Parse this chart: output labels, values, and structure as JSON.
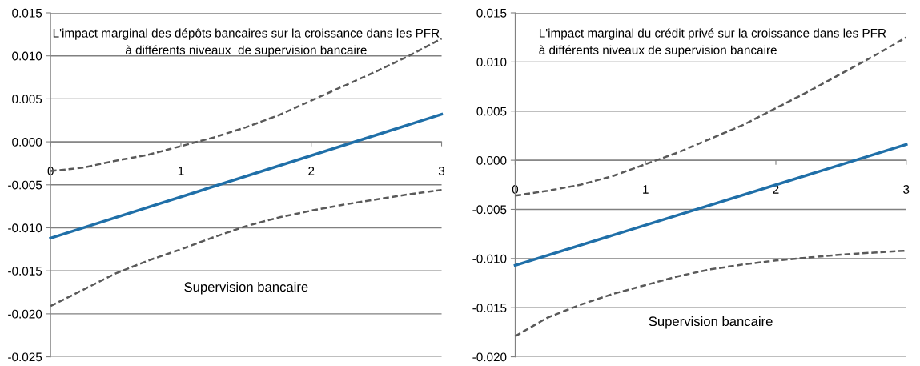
{
  "chart_data": [
    {
      "type": "line",
      "title": "L'impact marginal des dépôts bancaires sur la croissance dans les PFR\nà différents niveaux  de supervision bancaire",
      "xlabel": "Supervision bancaire",
      "xlim": [
        0,
        3
      ],
      "xticks": [
        0,
        1,
        2,
        3
      ],
      "ylim": [
        -0.025,
        0.015
      ],
      "yticks": [
        {
          "value": -0.025,
          "label": "-0.025"
        },
        {
          "value": -0.02,
          "label": "-0.020"
        },
        {
          "value": -0.015,
          "label": "-0.015"
        },
        {
          "value": -0.01,
          "label": "-0.010"
        },
        {
          "value": -0.005,
          "label": "-0.005"
        },
        {
          "value": 0,
          "label": "0.000"
        },
        {
          "value": 0.005,
          "label": "0.005"
        },
        {
          "value": 0.01,
          "label": "0.010"
        },
        {
          "value": 0.015,
          "label": "0.015"
        }
      ],
      "grid": "y",
      "legend": false,
      "marker": "none",
      "series": [
        {
          "color": "#595959",
          "line_style": "dashed",
          "x": [
            0,
            0.25,
            0.5,
            0.75,
            1,
            1.25,
            1.5,
            1.75,
            2,
            2.25,
            2.5,
            2.75,
            3
          ],
          "values": [
            -0.0034,
            -0.003,
            -0.0022,
            -0.0015,
            -0.0005,
            0.0005,
            0.0017,
            0.0031,
            0.0048,
            0.0065,
            0.0082,
            0.01,
            0.012
          ]
        },
        {
          "color": "#1f6fa8",
          "line_style": "solid",
          "x": [
            0,
            3
          ],
          "values": [
            -0.0112,
            0.0032
          ]
        },
        {
          "color": "#595959",
          "line_style": "dashed",
          "x": [
            0,
            0.25,
            0.5,
            0.75,
            1,
            1.25,
            1.5,
            1.75,
            2,
            2.25,
            2.5,
            2.75,
            3
          ],
          "values": [
            -0.0191,
            -0.0172,
            -0.0153,
            -0.0138,
            -0.0125,
            -0.0111,
            -0.0098,
            -0.0088,
            -0.008,
            -0.0073,
            -0.0067,
            -0.0061,
            -0.0056
          ]
        }
      ]
    },
    {
      "type": "line",
      "title": "L'impact marginal du crédit privé sur la croissance dans les PFR\nà différents niveaux de supervision bancaire",
      "xlabel": "Supervision bancaire",
      "xlim": [
        0,
        3
      ],
      "xticks": [
        0,
        1,
        2,
        3
      ],
      "ylim": [
        -0.02,
        0.015
      ],
      "yticks": [
        {
          "value": -0.02,
          "label": "-0.020"
        },
        {
          "value": -0.015,
          "label": "-0.015"
        },
        {
          "value": -0.01,
          "label": "-0.010"
        },
        {
          "value": -0.005,
          "label": "-0.005"
        },
        {
          "value": 0,
          "label": "0.000"
        },
        {
          "value": 0.005,
          "label": "0.005"
        },
        {
          "value": 0.01,
          "label": "0.010"
        },
        {
          "value": 0.015,
          "label": "0.015"
        }
      ],
      "grid": "y",
      "legend": false,
      "marker": "none",
      "series": [
        {
          "color": "#595959",
          "line_style": "dashed",
          "x": [
            0,
            0.25,
            0.5,
            0.75,
            1,
            1.25,
            1.5,
            1.75,
            2,
            2.25,
            2.5,
            2.75,
            3
          ],
          "values": [
            -0.0036,
            -0.0031,
            -0.0025,
            -0.0016,
            -0.0004,
            0.0008,
            0.0022,
            0.0036,
            0.0053,
            0.007,
            0.0088,
            0.0106,
            0.0125
          ]
        },
        {
          "color": "#1f6fa8",
          "line_style": "solid",
          "x": [
            0,
            3
          ],
          "values": [
            -0.0107,
            0.0016
          ]
        },
        {
          "color": "#595959",
          "line_style": "dashed",
          "x": [
            0,
            0.25,
            0.5,
            0.75,
            1,
            1.25,
            1.5,
            1.75,
            2,
            2.25,
            2.5,
            2.75,
            3
          ],
          "values": [
            -0.0179,
            -0.016,
            -0.0147,
            -0.0136,
            -0.0127,
            -0.0118,
            -0.0111,
            -0.0106,
            -0.0102,
            -0.0099,
            -0.0096,
            -0.0094,
            -0.0092
          ]
        }
      ]
    }
  ]
}
